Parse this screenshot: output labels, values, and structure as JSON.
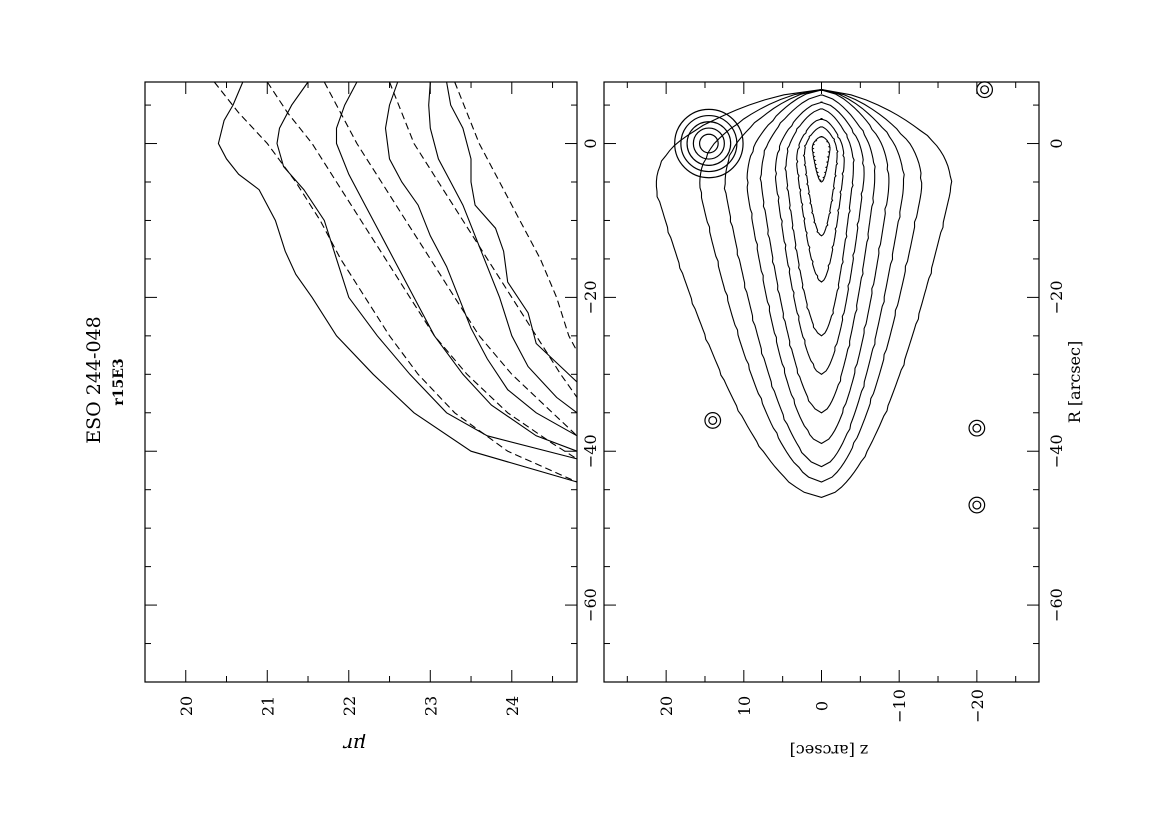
{
  "chart_data": [
    {
      "type": "line",
      "panel": "top",
      "title": "ESO 244-048",
      "subtitle": "r15E3",
      "xlabel": "",
      "ylabel": "μr",
      "xlim": [
        -70,
        8
      ],
      "ylim": [
        24.8,
        19.5
      ],
      "x_ticks": [
        -60,
        -40,
        -20,
        0
      ],
      "y_ticks": [
        20,
        21,
        22,
        23,
        24
      ],
      "y_reversed": true,
      "grid": false,
      "series": [
        {
          "style": "solid",
          "points": [
            [
              8,
              20.7
            ],
            [
              5,
              20.58
            ],
            [
              3,
              20.47
            ],
            [
              0,
              20.4
            ],
            [
              -2,
              20.5
            ],
            [
              -4,
              20.65
            ],
            [
              -6,
              20.9
            ],
            [
              -10,
              21.1
            ],
            [
              -14,
              21.22
            ],
            [
              -17,
              21.35
            ],
            [
              -20,
              21.55
            ],
            [
              -25,
              21.85
            ],
            [
              -30,
              22.3
            ],
            [
              -35,
              22.8
            ],
            [
              -40,
              23.5
            ],
            [
              -44,
              24.8
            ]
          ]
        },
        {
          "style": "solid",
          "points": [
            [
              8,
              21.5
            ],
            [
              5,
              21.3
            ],
            [
              2,
              21.15
            ],
            [
              0,
              21.12
            ],
            [
              -3,
              21.2
            ],
            [
              -6,
              21.45
            ],
            [
              -10,
              21.7
            ],
            [
              -15,
              21.85
            ],
            [
              -20,
              22.0
            ],
            [
              -25,
              22.35
            ],
            [
              -30,
              22.75
            ],
            [
              -35,
              23.2
            ],
            [
              -38,
              23.7
            ],
            [
              -41,
              24.8
            ]
          ]
        },
        {
          "style": "solid",
          "points": [
            [
              8,
              22.1
            ],
            [
              5,
              21.95
            ],
            [
              2,
              21.85
            ],
            [
              0,
              21.85
            ],
            [
              -4,
              22.0
            ],
            [
              -8,
              22.2
            ],
            [
              -12,
              22.4
            ],
            [
              -16,
              22.6
            ],
            [
              -20,
              22.8
            ],
            [
              -25,
              23.05
            ],
            [
              -30,
              23.4
            ],
            [
              -34,
              23.75
            ],
            [
              -38,
              24.3
            ],
            [
              -40,
              24.8
            ]
          ]
        },
        {
          "style": "solid",
          "points": [
            [
              8,
              22.6
            ],
            [
              5,
              22.5
            ],
            [
              2,
              22.45
            ],
            [
              -2,
              22.5
            ],
            [
              -5,
              22.65
            ],
            [
              -8,
              22.85
            ],
            [
              -12,
              23.0
            ],
            [
              -16,
              23.2
            ],
            [
              -20,
              23.35
            ],
            [
              -24,
              23.5
            ],
            [
              -28,
              23.7
            ],
            [
              -32,
              23.95
            ],
            [
              -35,
              24.3
            ],
            [
              -38,
              24.8
            ]
          ]
        },
        {
          "style": "solid",
          "points": [
            [
              8,
              23.0
            ],
            [
              5,
              22.98
            ],
            [
              2,
              23.0
            ],
            [
              -2,
              23.1
            ],
            [
              -5,
              23.25
            ],
            [
              -8,
              23.4
            ],
            [
              -12,
              23.55
            ],
            [
              -16,
              23.7
            ],
            [
              -20,
              23.85
            ],
            [
              -25,
              24.0
            ],
            [
              -29,
              24.2
            ],
            [
              -33,
              24.55
            ],
            [
              -35,
              24.8
            ]
          ]
        },
        {
          "style": "solid",
          "points": [
            [
              8,
              23.2
            ],
            [
              5,
              23.25
            ],
            [
              2,
              23.4
            ],
            [
              -2,
              23.5
            ],
            [
              -5,
              23.5
            ],
            [
              -8,
              23.55
            ],
            [
              -11,
              23.8
            ],
            [
              -14,
              23.9
            ],
            [
              -18,
              23.95
            ],
            [
              -22,
              24.2
            ],
            [
              -26,
              24.3
            ],
            [
              -29,
              24.6
            ],
            [
              -31,
              24.8
            ]
          ]
        },
        {
          "style": "dashed",
          "points": [
            [
              8,
              20.35
            ],
            [
              4,
              20.65
            ],
            [
              0,
              21.0
            ],
            [
              -5,
              21.35
            ],
            [
              -10,
              21.65
            ],
            [
              -15,
              21.9
            ],
            [
              -20,
              22.2
            ],
            [
              -25,
              22.5
            ],
            [
              -30,
              22.85
            ],
            [
              -35,
              23.3
            ],
            [
              -40,
              23.95
            ],
            [
              -44,
              24.8
            ]
          ]
        },
        {
          "style": "dashed",
          "points": [
            [
              8,
              21.0
            ],
            [
              4,
              21.25
            ],
            [
              0,
              21.55
            ],
            [
              -5,
              21.85
            ],
            [
              -10,
              22.15
            ],
            [
              -15,
              22.45
            ],
            [
              -20,
              22.75
            ],
            [
              -25,
              23.05
            ],
            [
              -30,
              23.45
            ],
            [
              -35,
              23.95
            ],
            [
              -39,
              24.5
            ],
            [
              -41,
              24.8
            ]
          ]
        },
        {
          "style": "dashed",
          "points": [
            [
              8,
              21.7
            ],
            [
              4,
              21.9
            ],
            [
              0,
              22.1
            ],
            [
              -5,
              22.4
            ],
            [
              -10,
              22.7
            ],
            [
              -15,
              23.0
            ],
            [
              -20,
              23.3
            ],
            [
              -25,
              23.6
            ],
            [
              -30,
              24.0
            ],
            [
              -35,
              24.5
            ],
            [
              -38,
              24.8
            ]
          ]
        },
        {
          "style": "dashed",
          "points": [
            [
              8,
              22.5
            ],
            [
              4,
              22.65
            ],
            [
              0,
              22.8
            ],
            [
              -5,
              23.1
            ],
            [
              -10,
              23.4
            ],
            [
              -15,
              23.7
            ],
            [
              -20,
              24.0
            ],
            [
              -25,
              24.3
            ],
            [
              -30,
              24.6
            ],
            [
              -33,
              24.8
            ]
          ]
        },
        {
          "style": "dashed",
          "points": [
            [
              8,
              23.3
            ],
            [
              4,
              23.45
            ],
            [
              0,
              23.6
            ],
            [
              -5,
              23.85
            ],
            [
              -10,
              24.1
            ],
            [
              -15,
              24.35
            ],
            [
              -20,
              24.55
            ],
            [
              -25,
              24.7
            ],
            [
              -27,
              24.8
            ]
          ]
        }
      ]
    },
    {
      "type": "contour",
      "panel": "bottom",
      "xlabel": "R [arcsec]",
      "ylabel": "z [arcsec]",
      "xlim": [
        -70,
        8
      ],
      "ylim": [
        -28,
        28
      ],
      "x_ticks": [
        -60,
        -40,
        -20,
        0
      ],
      "y_ticks": [
        -20,
        -10,
        0,
        10,
        20
      ],
      "grid": false,
      "galaxy_center": [
        0,
        0
      ],
      "galaxy_contours": [
        {
          "x_extent": 46,
          "z_up": 23,
          "z_down": 18
        },
        {
          "x_extent": 44,
          "z_up": 17,
          "z_down": 14
        },
        {
          "x_extent": 42,
          "z_up": 13.5,
          "z_down": 11.5
        },
        {
          "x_extent": 39,
          "z_up": 10.5,
          "z_down": 9.5
        },
        {
          "x_extent": 35,
          "z_up": 8.5,
          "z_down": 7.5
        },
        {
          "x_extent": 30,
          "z_up": 6.5,
          "z_down": 6
        },
        {
          "x_extent": 25,
          "z_up": 5,
          "z_down": 4.5
        },
        {
          "x_extent": 18,
          "z_up": 3.5,
          "z_down": 3.2
        },
        {
          "x_extent": 12,
          "z_up": 2.4,
          "z_down": 2.2
        },
        {
          "x_extent": 5,
          "z_up": 1.3,
          "z_down": 1.2
        }
      ],
      "stars": [
        {
          "x": 0,
          "z": 14.5,
          "radii": [
            1.2,
            2.0,
            2.8,
            3.6,
            4.4
          ]
        },
        {
          "x": -36,
          "z": 14,
          "radii": [
            0.5,
            1.0
          ]
        },
        {
          "x": -37,
          "z": -20,
          "radii": [
            0.5,
            1.0
          ]
        },
        {
          "x": -47,
          "z": -20,
          "radii": [
            0.5,
            1.0
          ]
        },
        {
          "x": 7,
          "z": -21,
          "radii": [
            0.5,
            1.0
          ]
        }
      ]
    }
  ]
}
